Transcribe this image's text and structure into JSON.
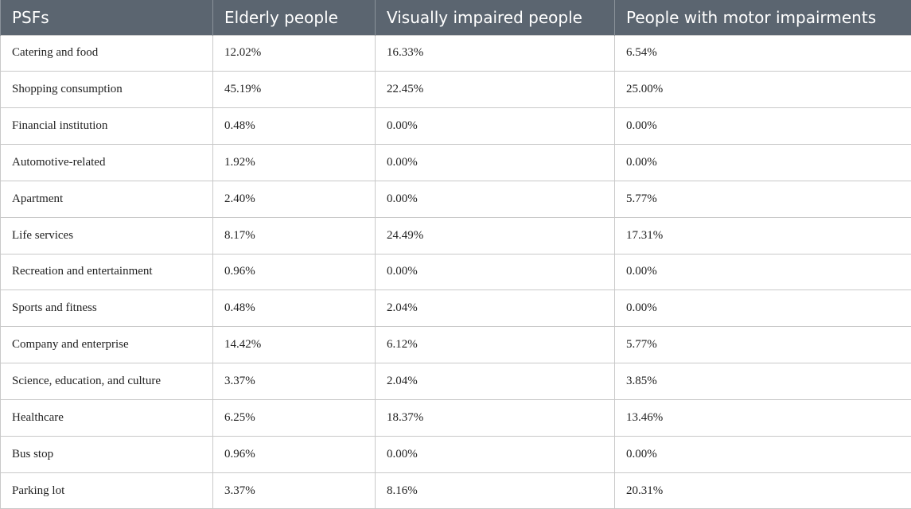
{
  "table": {
    "headers": [
      "PSFs",
      "Elderly people",
      "Visually impaired people",
      "People with motor impairments"
    ],
    "rows": [
      [
        "Catering and food",
        "12.02%",
        "16.33%",
        "6.54%"
      ],
      [
        "Shopping consumption",
        "45.19%",
        "22.45%",
        "25.00%"
      ],
      [
        "Financial institution",
        "0.48%",
        "0.00%",
        "0.00%"
      ],
      [
        "Automotive-related",
        "1.92%",
        "0.00%",
        "0.00%"
      ],
      [
        "Apartment",
        "2.40%",
        "0.00%",
        "5.77%"
      ],
      [
        "Life services",
        "8.17%",
        "24.49%",
        "17.31%"
      ],
      [
        "Recreation and entertainment",
        "0.96%",
        "0.00%",
        "0.00%"
      ],
      [
        "Sports and fitness",
        "0.48%",
        "2.04%",
        "0.00%"
      ],
      [
        "Company and enterprise",
        "14.42%",
        "6.12%",
        "5.77%"
      ],
      [
        "Science, education, and culture",
        "3.37%",
        "2.04%",
        "3.85%"
      ],
      [
        "Healthcare",
        "6.25%",
        "18.37%",
        "13.46%"
      ],
      [
        "Bus stop",
        "0.96%",
        "0.00%",
        "0.00%"
      ],
      [
        "Parking lot",
        "3.37%",
        "8.16%",
        "20.31%"
      ]
    ]
  }
}
